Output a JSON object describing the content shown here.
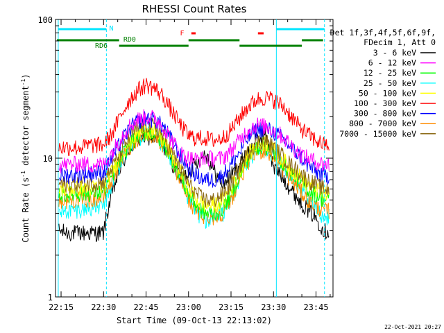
{
  "chart_data": {
    "type": "line",
    "title": "RHESSI Count Rates",
    "xlabel": "Start Time (09-Oct-13 22:13:02)",
    "ylabel": "Count Rate (s⁻¹ detector segment⁻¹)",
    "ylabel_parts": [
      "Count Rate (s",
      "-1",
      " detector segment",
      "-1",
      ")"
    ],
    "y_scale": "log",
    "ylim": [
      1,
      100
    ],
    "xlim": [
      "22:13:02",
      "23:51:00"
    ],
    "x_ticks": [
      "22:15",
      "22:30",
      "22:45",
      "23:00",
      "23:15",
      "23:30",
      "23:45"
    ],
    "y_ticks": [
      "1",
      "10",
      "100"
    ],
    "legend_header": [
      "Det 1f,3f,4f,5f,6f,9f,",
      "FDecim 1, Att 0"
    ],
    "legend_position": "right",
    "timestamp": "22-Oct-2021 20:27",
    "x": [
      "22:14",
      "22:18",
      "22:22",
      "22:26",
      "22:30",
      "22:33",
      "22:36",
      "22:39",
      "22:42",
      "22:45",
      "22:48",
      "22:51",
      "22:54",
      "22:57",
      "23:00",
      "23:03",
      "23:06",
      "23:09",
      "23:12",
      "23:15",
      "23:18",
      "23:21",
      "23:24",
      "23:27",
      "23:30",
      "23:33",
      "23:36",
      "23:39",
      "23:42",
      "23:45",
      "23:48"
    ],
    "series": [
      {
        "name": "3 - 6 keV",
        "color": "#000000",
        "values": [
          3.0,
          2.9,
          2.9,
          2.9,
          2.9,
          5.5,
          8.5,
          11.5,
          13.5,
          14.5,
          14.0,
          12.5,
          9.5,
          7.0,
          8.0,
          9.5,
          11.0,
          8.0,
          6.5,
          7.5,
          9.0,
          11.0,
          13.5,
          15.0,
          8.5,
          7.5,
          6.0,
          5.0,
          4.3,
          3.7,
          3.0
        ]
      },
      {
        "name": "6 - 12 keV",
        "color": "#ff00ff",
        "values": [
          9.0,
          9.0,
          9.2,
          9.0,
          9.0,
          11.0,
          14.0,
          17.0,
          19.0,
          20.0,
          19.5,
          17.0,
          13.5,
          11.0,
          10.0,
          9.8,
          10.0,
          10.0,
          10.0,
          11.5,
          13.5,
          16.0,
          17.5,
          17.0,
          16.0,
          14.5,
          12.5,
          11.0,
          10.0,
          9.5,
          9.0
        ]
      },
      {
        "name": "12 - 25 keV",
        "color": "#00ff00",
        "values": [
          5.5,
          5.5,
          5.6,
          5.6,
          5.8,
          7.5,
          10.0,
          12.5,
          14.5,
          15.5,
          15.0,
          13.0,
          10.0,
          7.5,
          5.5,
          4.5,
          4.0,
          4.0,
          4.3,
          5.5,
          7.5,
          10.0,
          12.0,
          12.5,
          11.0,
          9.5,
          8.0,
          7.0,
          6.0,
          5.5,
          5.0
        ]
      },
      {
        "name": "25 - 50 keV",
        "color": "#00ffff",
        "values": [
          4.0,
          4.2,
          4.3,
          4.4,
          4.5,
          6.5,
          9.0,
          12.0,
          14.0,
          15.0,
          14.5,
          12.5,
          9.5,
          7.0,
          5.0,
          4.0,
          3.6,
          3.6,
          4.0,
          5.0,
          7.0,
          9.5,
          11.5,
          12.0,
          10.5,
          9.0,
          7.5,
          6.0,
          5.0,
          4.3,
          3.8
        ]
      },
      {
        "name": "50 - 100 keV",
        "color": "#ffff00",
        "values": [
          6.0,
          6.0,
          6.1,
          6.1,
          6.3,
          8.0,
          10.5,
          13.0,
          15.0,
          16.0,
          15.5,
          13.5,
          10.5,
          8.0,
          6.0,
          5.0,
          4.6,
          4.6,
          5.0,
          6.0,
          8.0,
          10.5,
          12.5,
          13.0,
          11.5,
          10.0,
          8.5,
          7.5,
          6.5,
          6.0,
          5.5
        ]
      },
      {
        "name": "100 - 300 keV",
        "color": "#ff0000",
        "values": [
          12.0,
          12.0,
          12.0,
          12.5,
          12.5,
          15.0,
          20.0,
          26.0,
          31.0,
          34.0,
          32.0,
          28.0,
          22.0,
          17.5,
          14.5,
          14.0,
          14.0,
          13.5,
          14.0,
          16.0,
          19.5,
          23.5,
          26.5,
          27.5,
          26.5,
          24.0,
          20.5,
          17.0,
          15.0,
          13.5,
          12.5
        ]
      },
      {
        "name": "300 - 800 keV",
        "color": "#0000ff",
        "values": [
          7.5,
          7.6,
          7.7,
          7.8,
          8.0,
          10.0,
          13.0,
          16.0,
          18.5,
          19.5,
          19.0,
          17.0,
          13.5,
          10.5,
          8.5,
          7.5,
          7.0,
          7.0,
          7.5,
          9.0,
          11.0,
          14.0,
          16.0,
          16.5,
          15.5,
          14.0,
          12.0,
          10.5,
          9.0,
          8.0,
          7.5
        ]
      },
      {
        "name": "800 - 7000 keV",
        "color": "#ff8c00",
        "values": [
          5.0,
          5.0,
          5.1,
          5.1,
          5.2,
          7.0,
          9.5,
          12.0,
          14.0,
          15.0,
          14.5,
          12.5,
          9.5,
          7.0,
          5.0,
          4.1,
          3.8,
          3.8,
          4.1,
          5.0,
          7.0,
          9.5,
          11.0,
          11.5,
          10.0,
          8.5,
          7.0,
          6.0,
          5.0,
          4.5,
          4.2
        ]
      },
      {
        "name": "7000 - 15000 keV",
        "color": "#8b6914",
        "values": [
          6.5,
          6.5,
          6.6,
          6.6,
          6.8,
          8.5,
          11.0,
          14.0,
          16.5,
          17.5,
          17.0,
          14.5,
          11.0,
          8.5,
          6.5,
          5.5,
          5.0,
          5.0,
          5.5,
          6.5,
          8.5,
          11.0,
          13.0,
          13.5,
          12.0,
          10.5,
          9.0,
          8.0,
          7.0,
          6.5,
          6.0
        ]
      }
    ],
    "annotations": {
      "cyan_bar_labels": [
        "N"
      ],
      "attenuator_labels": [
        "RD6",
        "RD0"
      ],
      "flare_label": "F",
      "cyan_lines": [
        "22:14",
        "23:31"
      ],
      "cyan_dashed_lines": [
        "22:31",
        "23:48"
      ]
    }
  }
}
